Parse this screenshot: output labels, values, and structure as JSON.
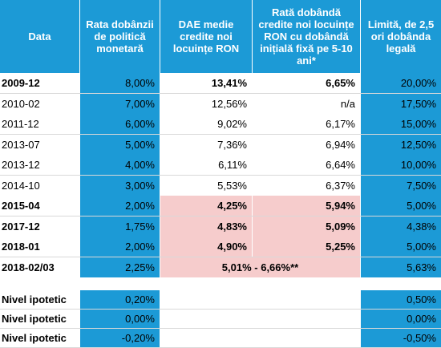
{
  "header": {
    "col1": "Data",
    "col2": "Rata dobânzii de politică monetară",
    "col3": "DAE medie credite noi locuințe RON",
    "col4": "Rată dobândă credite noi locuințe RON cu dobândă inițială fixă pe 5-10 ani*",
    "col5": "Limită, de 2,5 ori dobânda legală"
  },
  "rows": [
    {
      "date": "2009-12",
      "policy": "8,00%",
      "dae": "13,41%",
      "fixed": "6,65%",
      "limit": "20,00%",
      "bold": true
    },
    {
      "date": "2010-02",
      "policy": "7,00%",
      "dae": "12,56%",
      "fixed": "n/a",
      "limit": "17,50%",
      "bold": false
    },
    {
      "date": "2011-12",
      "policy": "6,00%",
      "dae": "9,02%",
      "fixed": "6,17%",
      "limit": "15,00%",
      "bold": false
    },
    {
      "date": "2013-07",
      "policy": "5,00%",
      "dae": "7,36%",
      "fixed": "6,94%",
      "limit": "12,50%",
      "bold": false
    },
    {
      "date": "2013-12",
      "policy": "4,00%",
      "dae": "6,11%",
      "fixed": "6,64%",
      "limit": "10,00%",
      "bold": false
    },
    {
      "date": "2014-10",
      "policy": "3,00%",
      "dae": "5,53%",
      "fixed": "6,37%",
      "limit": "7,50%",
      "bold": false
    },
    {
      "date": "2015-04",
      "policy": "2,00%",
      "dae": "4,25%",
      "fixed": "5,94%",
      "limit": "5,00%",
      "bold": true
    },
    {
      "date": "2017-12",
      "policy": "1,75%",
      "dae": "4,83%",
      "fixed": "5,09%",
      "limit": "4,38%",
      "bold": true
    },
    {
      "date": "2018-01",
      "policy": "2,00%",
      "dae": "4,90%",
      "fixed": "5,25%",
      "limit": "5,00%",
      "bold": true
    }
  ],
  "merged_row": {
    "date": "2018-02/03",
    "policy": "2,25%",
    "range": "5,01% - 6,66%**",
    "limit": "5,63%"
  },
  "hypothetical": [
    {
      "label": "Nivel ipotetic",
      "policy": "0,20%",
      "limit": "0,50%"
    },
    {
      "label": "Nivel ipotetic",
      "policy": "0,00%",
      "limit": "0,00%"
    },
    {
      "label": "Nivel ipotetic",
      "policy": "-0,20%",
      "limit": "-0,50%"
    }
  ],
  "colors": {
    "header_blue": "#1c9ad6",
    "highlight_pink": "#f6cccc",
    "row_white": "#ffffff"
  }
}
